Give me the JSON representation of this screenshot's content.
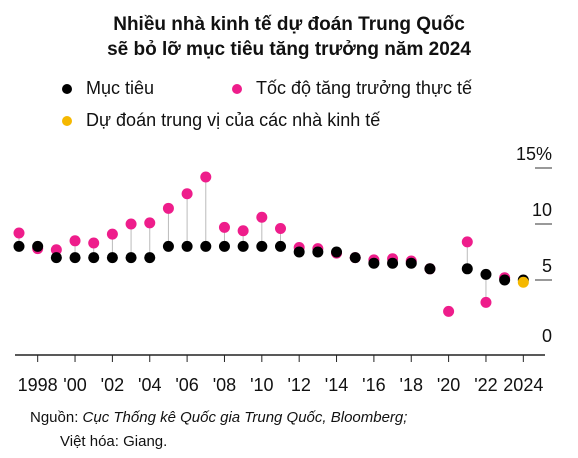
{
  "title_line1": "Nhiều nhà kinh tế dự đoán Trung Quốc",
  "title_line2": "sẽ bỏ lỡ mục tiêu tăng trưởng năm 2024",
  "legend": {
    "target": "Mục tiêu",
    "actual": "Tốc độ tăng trưởng thực tế",
    "forecast": "Dự đoán trung vị của các nhà kinh tế"
  },
  "colors": {
    "target": "#000000",
    "actual": "#ee1d8b",
    "forecast": "#f5b800",
    "connector": "#bbbbbb",
    "axis": "#222222"
  },
  "source_prefix": "Nguồn: ",
  "source_text": "Cục Thống kê Quốc gia Trung Quốc, Bloomberg;",
  "translation_credit": "Việt hóa: Giang.",
  "chart_data": {
    "type": "scatter",
    "ylim": [
      0,
      15
    ],
    "xlim": [
      1997,
      2025
    ],
    "y_ticks": [
      {
        "value": 15,
        "label": "15%"
      },
      {
        "value": 10,
        "label": "10"
      },
      {
        "value": 5,
        "label": "5"
      },
      {
        "value": 0,
        "label": "0"
      }
    ],
    "x_ticks": [
      {
        "value": 1998,
        "label": "1998"
      },
      {
        "value": 2000,
        "label": "'00"
      },
      {
        "value": 2002,
        "label": "'02"
      },
      {
        "value": 2004,
        "label": "'04"
      },
      {
        "value": 2006,
        "label": "'06"
      },
      {
        "value": 2008,
        "label": "'08"
      },
      {
        "value": 2010,
        "label": "'10"
      },
      {
        "value": 2012,
        "label": "'12"
      },
      {
        "value": 2014,
        "label": "'14"
      },
      {
        "value": 2016,
        "label": "'16"
      },
      {
        "value": 2018,
        "label": "'18"
      },
      {
        "value": 2020,
        "label": "'20"
      },
      {
        "value": 2022,
        "label": "'22"
      },
      {
        "value": 2024,
        "label": "2024"
      }
    ],
    "series": [
      {
        "name": "Mục tiêu",
        "x": [
          1997,
          1998,
          1999,
          2000,
          2001,
          2002,
          2003,
          2004,
          2005,
          2006,
          2007,
          2008,
          2009,
          2010,
          2011,
          2012,
          2013,
          2014,
          2015,
          2016,
          2017,
          2018,
          2019,
          2021,
          2022,
          2023,
          2024
        ],
        "y": [
          8,
          8,
          7,
          7,
          7,
          7,
          7,
          7,
          8,
          8,
          8,
          8,
          8,
          8,
          8,
          7.5,
          7.5,
          7.5,
          7,
          6.5,
          6.5,
          6.5,
          6,
          6,
          5.5,
          5,
          5
        ]
      },
      {
        "name": "Tốc độ tăng trưởng thực tế",
        "x": [
          1997,
          1998,
          1999,
          2000,
          2001,
          2002,
          2003,
          2004,
          2005,
          2006,
          2007,
          2008,
          2009,
          2010,
          2011,
          2012,
          2013,
          2014,
          2015,
          2016,
          2017,
          2018,
          2019,
          2020,
          2021,
          2022,
          2023
        ],
        "y": [
          9.2,
          7.8,
          7.7,
          8.5,
          8.3,
          9.1,
          10,
          10.1,
          11.4,
          12.7,
          14.2,
          9.7,
          9.4,
          10.6,
          9.6,
          7.9,
          7.8,
          7.4,
          7,
          6.8,
          6.9,
          6.7,
          6,
          2.2,
          8.4,
          3,
          5.2
        ]
      },
      {
        "name": "Dự đoán trung vị của các nhà kinh tế",
        "x": [
          2024
        ],
        "y": [
          4.8
        ]
      }
    ]
  }
}
